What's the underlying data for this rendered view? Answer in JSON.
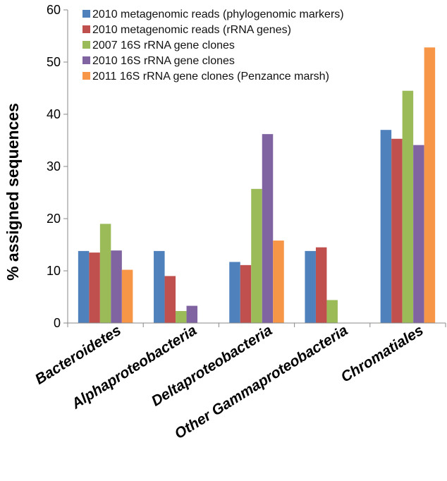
{
  "chart_data": {
    "type": "bar",
    "title": "",
    "xlabel": "",
    "ylabel": "% assigned sequences",
    "ylim": [
      0,
      60
    ],
    "yticks": [
      0,
      10,
      20,
      30,
      40,
      50,
      60
    ],
    "grid": false,
    "legend_position": "top-left",
    "categories": [
      "Bacteroidetes",
      "Alphaproteobacteria",
      "Deltaproteobacteria",
      "Other Gammaproteobacteria",
      "Chromatiales"
    ],
    "series": [
      {
        "name": "2010 metagenomic reads (phylogenomic markers)",
        "color": "#4f81bd",
        "values": [
          13.8,
          13.8,
          11.7,
          13.8,
          37.0
        ]
      },
      {
        "name": "2010 metagenomic reads (rRNA genes)",
        "color": "#c0504d",
        "values": [
          13.5,
          9.0,
          11.1,
          14.5,
          35.3
        ]
      },
      {
        "name": "2007 16S rRNA gene clones",
        "color": "#9bbb59",
        "values": [
          19.0,
          2.3,
          25.7,
          4.4,
          44.5
        ]
      },
      {
        "name": "2010 16S rRNA gene clones",
        "color": "#8064a2",
        "values": [
          13.9,
          3.3,
          36.2,
          0,
          34.1
        ]
      },
      {
        "name": "2011 16S rRNA gene clones (Penzance marsh)",
        "color": "#f79646",
        "values": [
          10.2,
          0,
          15.8,
          0,
          52.8
        ]
      }
    ]
  }
}
